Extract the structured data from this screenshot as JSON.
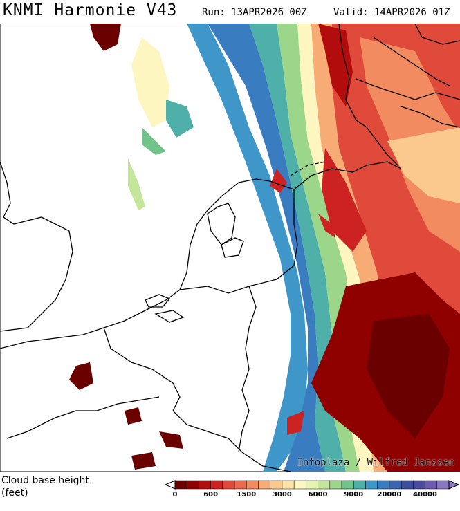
{
  "header": {
    "title": "KNMI Harmonie V43",
    "run": "Run: 13APR2026 00Z",
    "valid": "Valid: 14APR2026 01Z"
  },
  "credit": "Infoplaza / Wilfred Janssen",
  "legend": {
    "title_line1": "Cloud base height",
    "title_line2": "(feet)",
    "tick_labels": [
      "0",
      "600",
      "1500",
      "3000",
      "6000",
      "9000",
      "20000",
      "40000"
    ],
    "colors": [
      "#6b0000",
      "#8f0000",
      "#b30c0c",
      "#cc2222",
      "#e04a3a",
      "#ec6b4e",
      "#f28c60",
      "#f7ab75",
      "#fbc98e",
      "#fde3a6",
      "#fdf6c0",
      "#e6f2b0",
      "#c4e69a",
      "#9cd68a",
      "#70c48a",
      "#4eb0a8",
      "#3f96c8",
      "#3a7cc0",
      "#3964b0",
      "#3b4ea0",
      "#4a4aa0",
      "#6a5ab0",
      "#8a78c0"
    ]
  }
}
